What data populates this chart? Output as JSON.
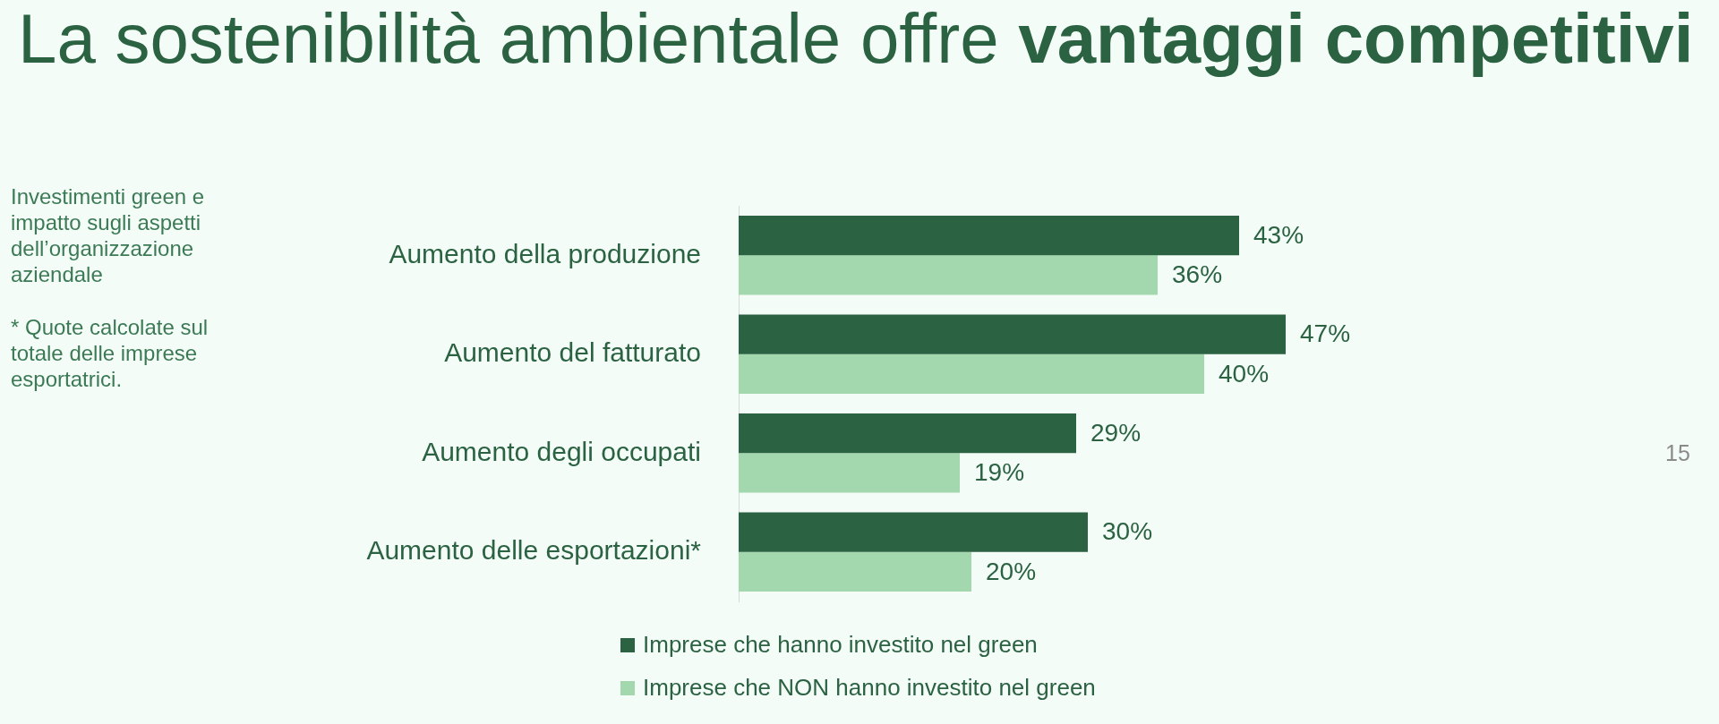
{
  "chart_data": {
    "type": "bar",
    "orientation": "horizontal",
    "title": "La sostenibilità ambientale offre vantaggi competitivi",
    "subtitle": "Investimenti green e impatto sugli aspetti dell’organizzazione aziendale",
    "annotations": [
      "* Quote calcolate sul totale delle imprese esportatrici.",
      "15"
    ],
    "categories": [
      "Aumento della produzione",
      "Aumento del fatturato",
      "Aumento degli occupati",
      "Aumento delle esportazioni*"
    ],
    "series": [
      {
        "name": "Imprese che hanno investito nel green",
        "color": "#2b6242",
        "values": [
          43,
          47,
          29,
          30
        ],
        "value_labels": [
          "43%",
          "47%",
          "29%",
          "30%"
        ]
      },
      {
        "name": "Imprese che NON hanno investito nel green",
        "color": "#a3d7ae",
        "values": [
          36,
          40,
          19,
          20
        ],
        "value_labels": [
          "36%",
          "40%",
          "19%",
          "20%"
        ]
      }
    ],
    "tick_labels": "y",
    "legend": "bottom"
  }
}
